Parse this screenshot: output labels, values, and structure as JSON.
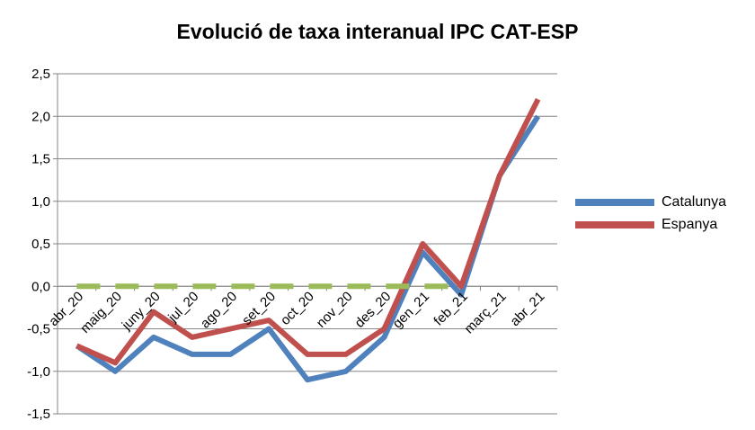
{
  "chart_data": {
    "type": "line",
    "title": "Evolució de taxa interanual IPC CAT-ESP",
    "categories": [
      "abr_20",
      "maig_20",
      "juny_20",
      "jul_20",
      "ago_20",
      "set_20",
      "oct_20",
      "nov_20",
      "des_20",
      "gen_21",
      "feb_21",
      "març_21",
      "abr_21"
    ],
    "y_ticks": [
      "2,5",
      "2,0",
      "1,5",
      "1,0",
      "0,5",
      "0,0",
      "-0,5",
      "-1,0",
      "-1,5"
    ],
    "ylim": [
      -1.5,
      2.5
    ],
    "grid": true,
    "legend_position": "right",
    "series": [
      {
        "name": "Catalunya",
        "color": "#4F81BD",
        "values": [
          -0.7,
          -1.0,
          -0.6,
          -0.8,
          -0.8,
          -0.5,
          -1.1,
          -1.0,
          -0.6,
          0.4,
          -0.1,
          1.3,
          2.0
        ]
      },
      {
        "name": "Espanya",
        "color": "#C0504D",
        "values": [
          -0.7,
          -0.9,
          -0.3,
          -0.6,
          -0.5,
          -0.4,
          -0.8,
          -0.8,
          -0.5,
          0.5,
          0.0,
          1.3,
          2.2
        ]
      },
      {
        "name": "",
        "color": "#9BBB59",
        "dashed": true,
        "values": [
          0,
          0,
          0,
          0,
          0,
          0,
          0,
          0,
          0,
          0,
          0,
          null,
          null
        ]
      }
    ]
  }
}
